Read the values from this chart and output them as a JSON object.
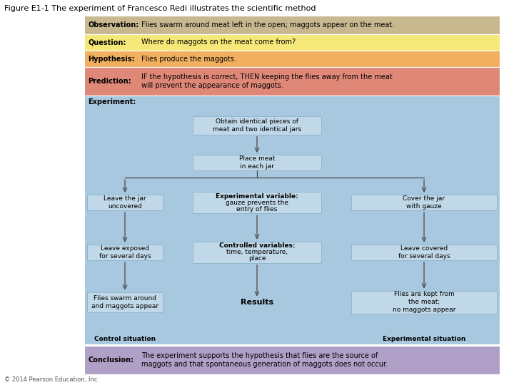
{
  "title": "Figure E1-1 The experiment of Francesco Redi illustrates the scientific method",
  "title_fontsize": 8,
  "bg_color": "#ffffff",
  "rows": [
    {
      "label": "Observation:",
      "text": "Flies swarm around meat left in the open; maggots appear on the meat.",
      "bg": "#c8b890"
    },
    {
      "label": "Question:",
      "text": "Where do maggots on the meat come from?",
      "bg": "#f5e878"
    },
    {
      "label": "Hypothesis:",
      "text": "Flies produce the maggots.",
      "bg": "#f0b060"
    },
    {
      "label": "Prediction:",
      "text": "IF the hypothesis is correct, THEN keeping the flies away from the meat\nwill prevent the appearance of maggots.",
      "bg": "#e08878"
    }
  ],
  "experiment_bg": "#a8c8e0",
  "experiment_label": "Experiment:",
  "box_color": "#c0d8e8",
  "box_edge": "#90b8d0",
  "left_col_boxes": [
    {
      "text": "Leave the jar\nuncovered"
    },
    {
      "text": "Leave exposed\nfor several days"
    },
    {
      "text": "Flies swarm around\nand maggots appear"
    }
  ],
  "mid_top_boxes": [
    {
      "text": "Obtain identical pieces of\nmeat and two identical jars",
      "bold_first": false
    },
    {
      "text": "Place meat\nin each jar",
      "bold_first": false
    }
  ],
  "mid_col_boxes": [
    {
      "text": "Experimental variable:\ngauze prevents the\nentry of flies",
      "bold_first": true
    },
    {
      "text": "Controlled variables:\ntime, temperature,\nplace",
      "bold_first": true
    },
    {
      "text": "Results",
      "bold_first": true
    }
  ],
  "right_col_boxes": [
    {
      "text": "Cover the jar\nwith gauze"
    },
    {
      "text": "Leave covered\nfor several days"
    },
    {
      "text": "Flies are kept from\nthe meat;\nno maggots appear"
    }
  ],
  "control_label": "Control situation",
  "experimental_label": "Experimental situation",
  "conclusion_label": "Conclusion:",
  "conclusion_text": "The experiment supports the hypothesis that flies are the source of\nmaggots and that spontaneous generation of maggots does not occur.",
  "conclusion_bg": "#b0a0c8",
  "copyright": "© 2014 Pearson Education, Inc.",
  "label_fontsize": 7,
  "text_fontsize": 7,
  "small_fontsize": 6.5
}
